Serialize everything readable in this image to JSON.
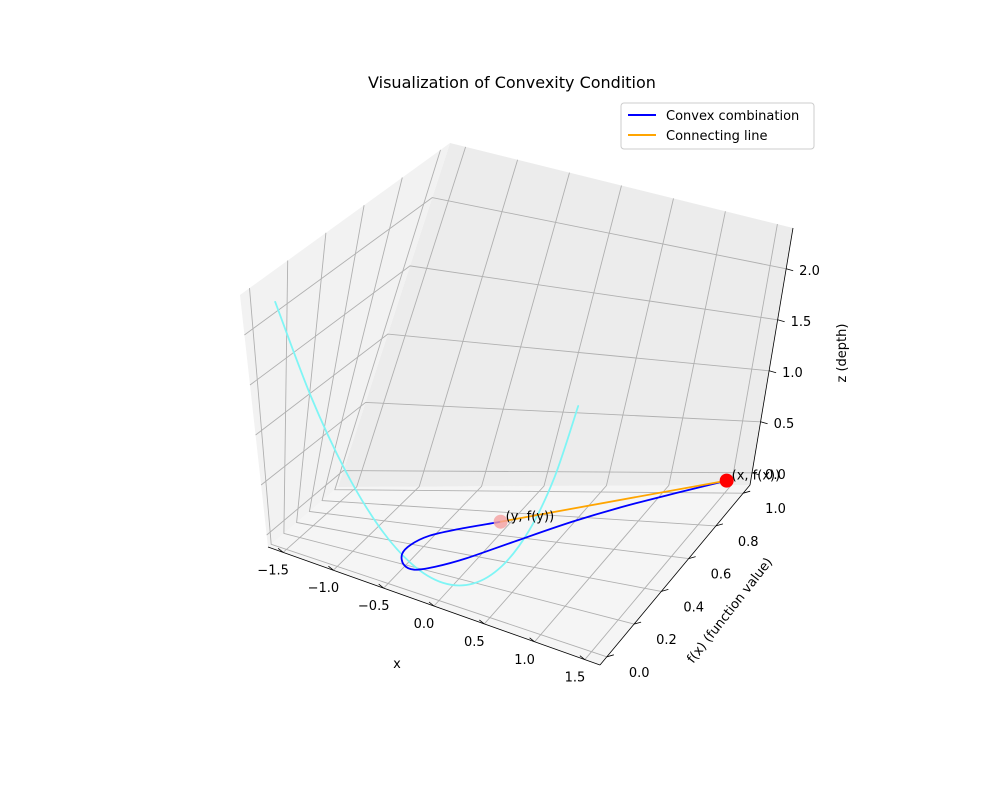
{
  "chart_data": {
    "type": "line3d",
    "title": "Visualization of Convexity Condition",
    "xlabel": "x",
    "ylabel": "f(x) (function value)",
    "zlabel": "z (depth)",
    "x_ticks": [
      "−1.5",
      "−1.0",
      "−0.5",
      "0.0",
      "0.5",
      "1.0",
      "1.5"
    ],
    "y_ticks": [
      "0.0",
      "0.2",
      "0.4",
      "0.6",
      "0.8",
      "1.0"
    ],
    "z_ticks": [
      "0.0",
      "0.5",
      "1.0",
      "1.5",
      "2.0"
    ],
    "xlim": [
      -1.65,
      1.65
    ],
    "ylim": [
      -0.05,
      1.05
    ],
    "zlim": [
      -0.12,
      2.4
    ],
    "grid": true,
    "legend_position": "top-right",
    "colors": {
      "parabola": "#7ff5f5",
      "convex_combination": "#0000ff",
      "connecting_line": "#ffa500",
      "point_x": "#ff0000",
      "point_y": "#f5a0a0"
    },
    "series": [
      {
        "name": "Convex combination",
        "x": [
          1.5,
          1.2,
          0.9,
          0.6,
          0.3,
          0.0,
          -0.2,
          -0.35,
          -0.45,
          -0.5,
          -0.48,
          -0.4,
          -0.25,
          0.0
        ],
        "y": [
          1.0,
          0.9,
          0.78,
          0.63,
          0.45,
          0.27,
          0.17,
          0.12,
          0.12,
          0.16,
          0.23,
          0.33,
          0.46,
          0.6
        ],
        "z": [
          0.0,
          0.02,
          0.04,
          0.05,
          0.04,
          0.0,
          -0.03,
          -0.05,
          -0.03,
          0.02,
          0.05,
          0.06,
          0.03,
          0.0
        ]
      },
      {
        "name": "Connecting line",
        "x": [
          1.5,
          0.0
        ],
        "y": [
          1.0,
          0.6
        ],
        "z": [
          0.0,
          0.0
        ]
      },
      {
        "x": [
          -1.5,
          -1.2,
          -0.9,
          -0.6,
          -0.3,
          0.0,
          0.3,
          0.6,
          0.9,
          1.2,
          1.5
        ],
        "y": [
          0.05,
          0.05,
          0.05,
          0.05,
          0.05,
          0.05,
          0.05,
          0.05,
          0.05,
          0.05,
          0.05
        ],
        "z": [
          2.25,
          1.44,
          0.81,
          0.36,
          0.09,
          0.0,
          0.09,
          0.36,
          0.81,
          1.44,
          2.25
        ]
      }
    ],
    "points": [
      {
        "label": "(x, f(x))",
        "x": 1.5,
        "y": 1.0,
        "z": 0.0
      },
      {
        "label": "(y, f(y))",
        "x": 0.0,
        "y": 0.6,
        "z": 0.0
      }
    ]
  }
}
